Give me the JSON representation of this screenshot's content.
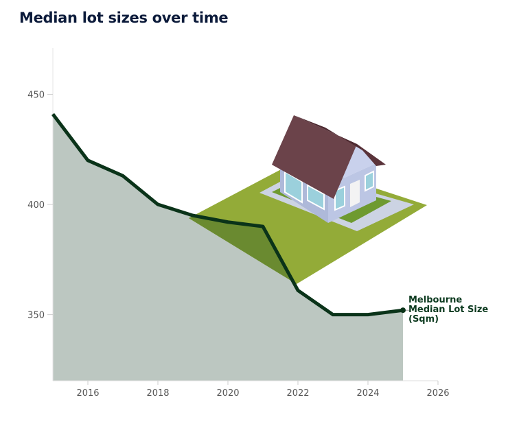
{
  "chart_data": {
    "type": "area",
    "title": "Median lot sizes over time",
    "xlabel": "",
    "ylabel": "",
    "x": [
      2015,
      2016,
      2017,
      2018,
      2019,
      2020,
      2021,
      2022,
      2023,
      2024,
      2025
    ],
    "series": [
      {
        "name": "Melbourne Median Lot Size (Sqm)",
        "label_lines": [
          "Melbourne",
          "Median Lot Size",
          "(Sqm)"
        ],
        "values": [
          441,
          420,
          413,
          400,
          395,
          392,
          390,
          361,
          350,
          350,
          352
        ]
      }
    ],
    "xlim": [
      2015,
      2026
    ],
    "ylim": [
      320,
      471
    ],
    "xticks": [
      "2016",
      "2018",
      "2020",
      "2022",
      "2024",
      "2026"
    ],
    "yticks": [
      "350",
      "400",
      "450"
    ],
    "grid": false,
    "colors": {
      "line": "#0a3319",
      "area": "#bcc7c1",
      "lawn": "#93ab38",
      "roof": "#6b434a",
      "walls": "#aeb9d9",
      "path": "#ccd3e3"
    },
    "illustration": "house-icon"
  }
}
